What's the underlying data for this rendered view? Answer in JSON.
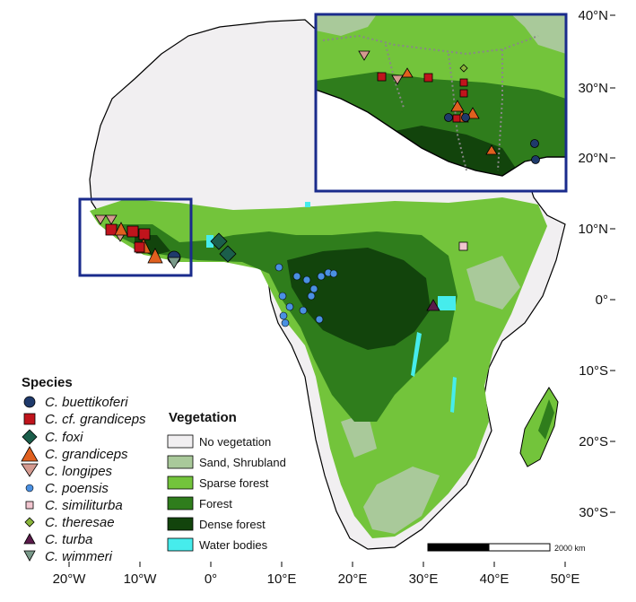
{
  "axes": {
    "lat_labels": [
      "40°N",
      "30°N",
      "20°N",
      "10°N",
      "0°",
      "10°S",
      "20°S",
      "30°S"
    ],
    "lon_labels": [
      "20°W",
      "10°W",
      "0°",
      "10°E",
      "20°E",
      "30°E",
      "40°E",
      "50°E"
    ]
  },
  "legend_species": {
    "title": "Species",
    "items": [
      {
        "name": "C. buettikoferi",
        "shape": "circle",
        "color": "#1f3a6b"
      },
      {
        "name": "C. cf. grandiceps",
        "shape": "square",
        "color": "#c0141c"
      },
      {
        "name": "C. foxi",
        "shape": "diamond",
        "color": "#1b5e4b"
      },
      {
        "name": "C. grandiceps",
        "shape": "triangle-up",
        "color": "#e0601f"
      },
      {
        "name": "C. longipes",
        "shape": "triangle-down",
        "color": "#d49a90"
      },
      {
        "name": "C. poensis",
        "shape": "circle-small",
        "color": "#4a90e2"
      },
      {
        "name": "C. similiturba",
        "shape": "square-small",
        "color": "#f2c6d0"
      },
      {
        "name": "C. theresae",
        "shape": "diamond-small",
        "color": "#8ab53a"
      },
      {
        "name": "C. turba",
        "shape": "triangle-small",
        "color": "#5a1a4a"
      },
      {
        "name": "C. wimmeri",
        "shape": "triangle-down-small",
        "color": "#7a9a8a"
      }
    ]
  },
  "legend_vegetation": {
    "title": "Vegetation",
    "items": [
      {
        "name": "No vegetation",
        "color": "#f1eff1"
      },
      {
        "name": "Sand, Shrubland",
        "color": "#a9c99a"
      },
      {
        "name": "Sparse forest",
        "color": "#73c43b"
      },
      {
        "name": "Forest",
        "color": "#2f7d1c"
      },
      {
        "name": "Dense forest",
        "color": "#12440c"
      },
      {
        "name": "Water bodies",
        "color": "#46ecec"
      }
    ]
  },
  "scale_bar": {
    "label": "2000 km"
  },
  "colors": {
    "inset_frame": "#1a2b8c",
    "outline": "#000000",
    "border": "#777777"
  }
}
